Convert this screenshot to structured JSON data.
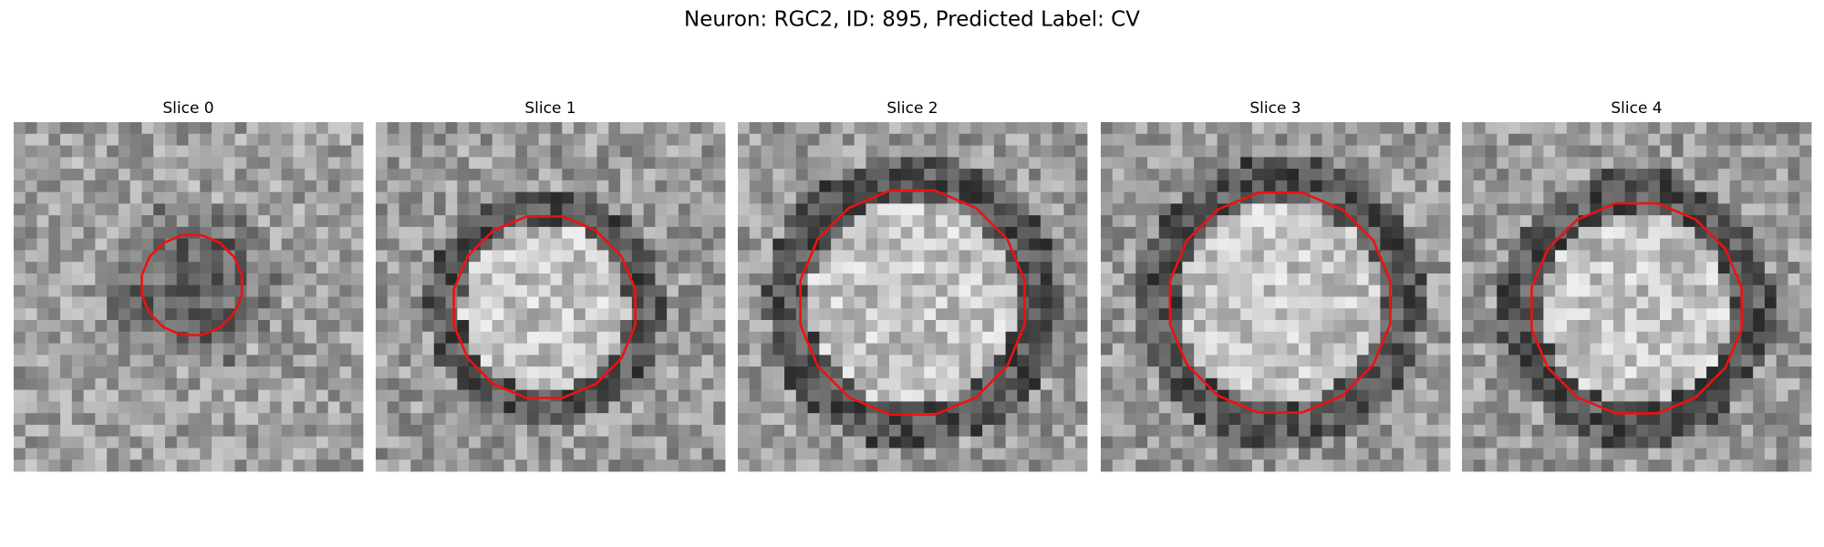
{
  "title": "Neuron: RGC2, ID: 895, Predicted Label: CV",
  "panels": [
    {
      "title": "Slice 0"
    },
    {
      "title": "Slice 1"
    },
    {
      "title": "Slice 2"
    },
    {
      "title": "Slice 3"
    },
    {
      "title": "Slice 4"
    }
  ]
}
